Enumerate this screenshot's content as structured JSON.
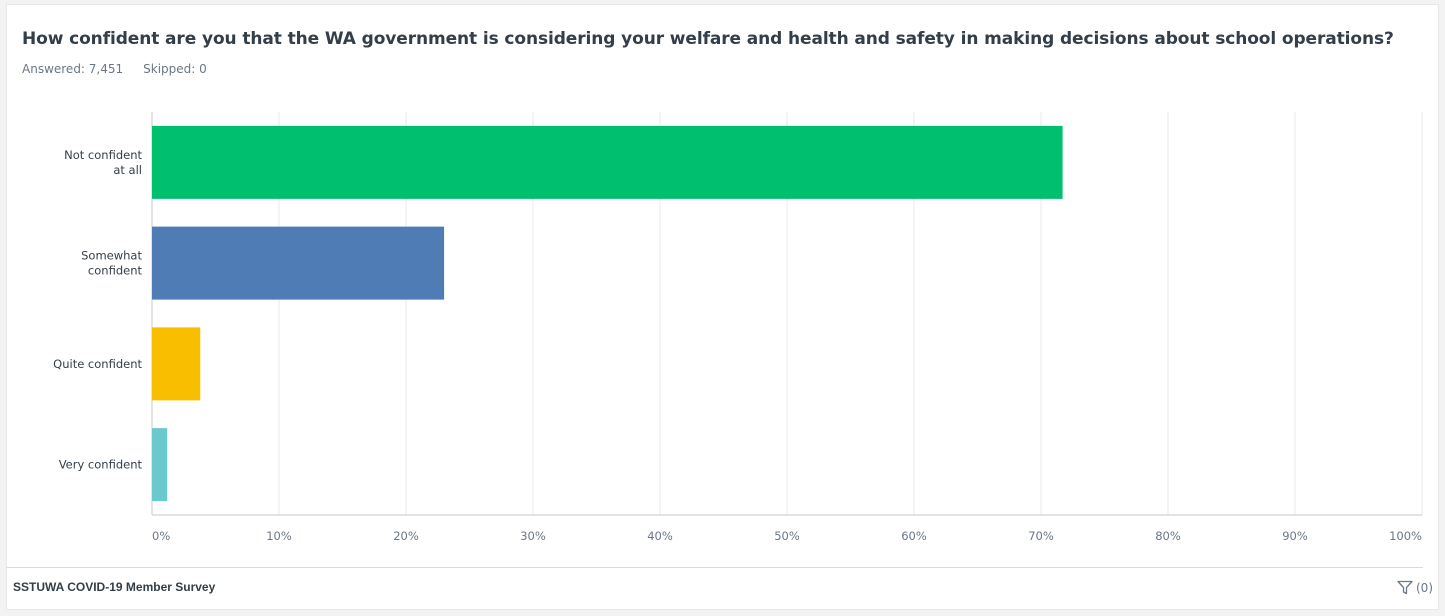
{
  "question": {
    "title": "How confident are you that the WA government is considering your welfare and health and safety in making decisions about school operations?",
    "answered": "Answered: 7,451",
    "skipped": "Skipped: 0"
  },
  "footer": {
    "survey_name": "SSTUWA COVID-19 Member Survey",
    "filter_count": "(0)",
    "filter_icon": "filter-icon"
  },
  "chart_data": {
    "type": "bar",
    "orientation": "horizontal",
    "categories": [
      [
        "Not confident",
        "at all"
      ],
      [
        "Somewhat",
        "confident"
      ],
      [
        "Quite confident"
      ],
      [
        "Very confident"
      ]
    ],
    "values": [
      71.7,
      23.0,
      3.8,
      1.2
    ],
    "colors": [
      "#00bf6f",
      "#507cb6",
      "#f9be00",
      "#6bc8cd"
    ],
    "xlim": [
      0,
      100
    ],
    "xticks": [
      0,
      10,
      20,
      30,
      40,
      50,
      60,
      70,
      80,
      90,
      100
    ],
    "xtick_labels": [
      "0%",
      "10%",
      "20%",
      "30%",
      "40%",
      "50%",
      "60%",
      "70%",
      "80%",
      "90%",
      "100%"
    ],
    "grid": true,
    "legend": "none"
  }
}
